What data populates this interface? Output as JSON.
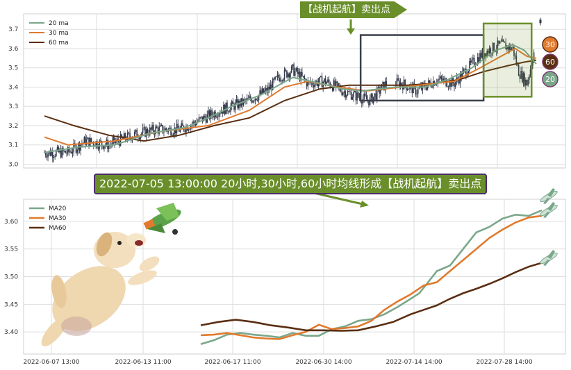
{
  "colors": {
    "ma20": "#7aa78a",
    "ma30": "#e07a2e",
    "ma60": "#5a2e12",
    "candle": "#33394a",
    "grid": "#dddddd",
    "signal_green": "#6a8f2a",
    "box_dark": "#3a3f4a",
    "banner_border": "#4b2b6e"
  },
  "signal_tag": "【战机起航】卖出点",
  "headline": "2022-07-05 13:00:00 20小时,30小时,60小时均线形成【战机起航】卖出点",
  "badges": {
    "ma30": "30",
    "ma60": "60",
    "ma20": "20"
  },
  "icons": [
    "dog-illustration",
    "airplane-icon",
    "airplane-icon",
    "airplane-icon",
    "toy-airplane-icon"
  ],
  "chart_data": [
    {
      "type": "candlestick",
      "title": "",
      "legend": [
        "20 ma",
        "30 ma",
        "60 ma"
      ],
      "legend_position": "top-left",
      "grid": true,
      "ylim": [
        2.98,
        3.78
      ],
      "yticks": [
        "3.0",
        "3.1",
        "3.2",
        "3.3",
        "3.4",
        "3.5",
        "3.6",
        "3.7"
      ],
      "n_bars": 420,
      "price_path": [
        [
          0,
          3.06
        ],
        [
          20,
          3.06
        ],
        [
          35,
          3.12
        ],
        [
          55,
          3.1
        ],
        [
          75,
          3.15
        ],
        [
          95,
          3.18
        ],
        [
          115,
          3.18
        ],
        [
          130,
          3.22
        ],
        [
          150,
          3.28
        ],
        [
          170,
          3.32
        ],
        [
          190,
          3.38
        ],
        [
          200,
          3.45
        ],
        [
          212,
          3.49
        ],
        [
          225,
          3.42
        ],
        [
          240,
          3.43
        ],
        [
          255,
          3.38
        ],
        [
          268,
          3.35
        ],
        [
          278,
          3.33
        ],
        [
          292,
          3.42
        ],
        [
          305,
          3.42
        ],
        [
          318,
          3.38
        ],
        [
          335,
          3.44
        ],
        [
          350,
          3.42
        ],
        [
          362,
          3.5
        ],
        [
          375,
          3.58
        ],
        [
          390,
          3.62
        ],
        [
          400,
          3.6
        ],
        [
          405,
          3.48
        ],
        [
          412,
          3.42
        ],
        [
          418,
          3.58
        ]
      ],
      "ma20": [
        [
          0,
          3.06
        ],
        [
          30,
          3.09
        ],
        [
          60,
          3.1
        ],
        [
          90,
          3.16
        ],
        [
          120,
          3.19
        ],
        [
          140,
          3.24
        ],
        [
          160,
          3.3
        ],
        [
          185,
          3.36
        ],
        [
          212,
          3.45
        ],
        [
          235,
          3.42
        ],
        [
          255,
          3.39
        ],
        [
          272,
          3.38
        ],
        [
          285,
          3.39
        ],
        [
          300,
          3.4
        ],
        [
          325,
          3.4
        ],
        [
          345,
          3.44
        ],
        [
          365,
          3.5
        ],
        [
          385,
          3.59
        ],
        [
          400,
          3.62
        ],
        [
          410,
          3.59
        ],
        [
          420,
          3.52
        ]
      ],
      "ma30": [
        [
          0,
          3.14
        ],
        [
          20,
          3.1
        ],
        [
          60,
          3.12
        ],
        [
          100,
          3.17
        ],
        [
          140,
          3.2
        ],
        [
          175,
          3.28
        ],
        [
          205,
          3.4
        ],
        [
          225,
          3.43
        ],
        [
          250,
          3.4
        ],
        [
          275,
          3.38
        ],
        [
          290,
          3.39
        ],
        [
          320,
          3.41
        ],
        [
          350,
          3.43
        ],
        [
          372,
          3.5
        ],
        [
          390,
          3.56
        ],
        [
          402,
          3.6
        ],
        [
          412,
          3.56
        ],
        [
          420,
          3.55
        ]
      ],
      "ma60": [
        [
          0,
          3.25
        ],
        [
          25,
          3.2
        ],
        [
          55,
          3.15
        ],
        [
          85,
          3.12
        ],
        [
          115,
          3.15
        ],
        [
          145,
          3.2
        ],
        [
          175,
          3.24
        ],
        [
          205,
          3.33
        ],
        [
          235,
          3.39
        ],
        [
          260,
          3.41
        ],
        [
          285,
          3.41
        ],
        [
          310,
          3.41
        ],
        [
          335,
          3.42
        ],
        [
          355,
          3.44
        ],
        [
          375,
          3.48
        ],
        [
          395,
          3.51
        ],
        [
          410,
          3.53
        ],
        [
          420,
          3.54
        ]
      ],
      "highlight_boxes": [
        {
          "style": "dark",
          "x": [
            270,
            375
          ],
          "y": [
            3.33,
            3.67
          ]
        },
        {
          "style": "green",
          "x": [
            375,
            416
          ],
          "y": [
            3.35,
            3.73
          ]
        }
      ]
    },
    {
      "type": "line",
      "title": "",
      "legend": [
        "MA20",
        "MA30",
        "MA60"
      ],
      "legend_position": "top-left",
      "grid": true,
      "ylim": [
        3.36,
        3.64
      ],
      "yticks": [
        "3.40",
        "3.45",
        "3.50",
        "3.55",
        "3.60"
      ],
      "x_tick_labels": [
        "2022-06-07 13:00",
        "2022-06-13 11:00",
        "2022-06-17 11:00",
        "2022-06-30 14:00",
        "2022-07-14 14:00",
        "2022-07-28 14:00"
      ],
      "series": [
        {
          "name": "MA20",
          "points": [
            [
              0,
              3.378
            ],
            [
              6,
              3.385
            ],
            [
              12,
              3.395
            ],
            [
              18,
              3.398
            ],
            [
              24,
              3.395
            ],
            [
              30,
              3.393
            ],
            [
              36,
              3.39
            ],
            [
              42,
              3.398
            ],
            [
              48,
              3.393
            ],
            [
              54,
              3.393
            ],
            [
              60,
              3.405
            ],
            [
              66,
              3.41
            ],
            [
              72,
              3.42
            ],
            [
              78,
              3.423
            ],
            [
              84,
              3.432
            ],
            [
              90,
              3.445
            ],
            [
              96,
              3.46
            ],
            [
              100,
              3.47
            ],
            [
              104,
              3.49
            ],
            [
              108,
              3.51
            ],
            [
              114,
              3.52
            ],
            [
              120,
              3.55
            ],
            [
              126,
              3.58
            ],
            [
              132,
              3.59
            ],
            [
              138,
              3.605
            ],
            [
              144,
              3.612
            ],
            [
              150,
              3.61
            ],
            [
              156,
              3.62
            ]
          ]
        },
        {
          "name": "MA30",
          "points": [
            [
              0,
              3.394
            ],
            [
              6,
              3.395
            ],
            [
              12,
              3.398
            ],
            [
              18,
              3.394
            ],
            [
              24,
              3.39
            ],
            [
              30,
              3.388
            ],
            [
              36,
              3.387
            ],
            [
              42,
              3.394
            ],
            [
              48,
              3.4
            ],
            [
              54,
              3.413
            ],
            [
              60,
              3.405
            ],
            [
              66,
              3.407
            ],
            [
              72,
              3.41
            ],
            [
              78,
              3.42
            ],
            [
              84,
              3.44
            ],
            [
              90,
              3.455
            ],
            [
              96,
              3.468
            ],
            [
              102,
              3.484
            ],
            [
              108,
              3.49
            ],
            [
              114,
              3.51
            ],
            [
              120,
              3.53
            ],
            [
              126,
              3.55
            ],
            [
              132,
              3.57
            ],
            [
              138,
              3.585
            ],
            [
              144,
              3.598
            ],
            [
              150,
              3.607
            ],
            [
              156,
              3.61
            ]
          ]
        },
        {
          "name": "MA60",
          "points": [
            [
              0,
              3.412
            ],
            [
              8,
              3.418
            ],
            [
              16,
              3.422
            ],
            [
              24,
              3.418
            ],
            [
              32,
              3.412
            ],
            [
              40,
              3.408
            ],
            [
              48,
              3.403
            ],
            [
              56,
              3.403
            ],
            [
              64,
              3.402
            ],
            [
              72,
              3.403
            ],
            [
              80,
              3.41
            ],
            [
              88,
              3.418
            ],
            [
              96,
              3.432
            ],
            [
              102,
              3.44
            ],
            [
              108,
              3.448
            ],
            [
              114,
              3.46
            ],
            [
              120,
              3.47
            ],
            [
              126,
              3.478
            ],
            [
              132,
              3.487
            ],
            [
              138,
              3.497
            ],
            [
              144,
              3.508
            ],
            [
              150,
              3.518
            ],
            [
              156,
              3.525
            ]
          ]
        }
      ]
    }
  ]
}
